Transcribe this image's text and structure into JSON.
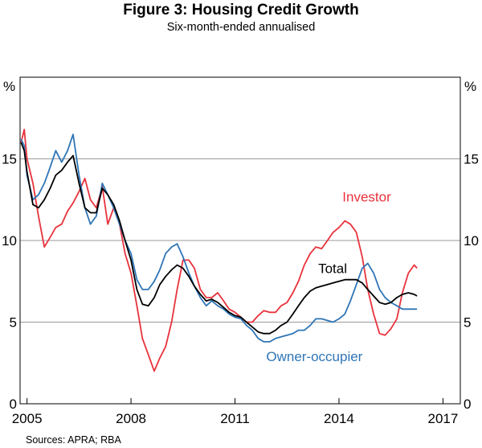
{
  "chart_data": {
    "type": "line",
    "title": "Figure 3: Housing Credit Growth",
    "subtitle": "Six-month-ended annualised",
    "unit_left": "%",
    "unit_right": "%",
    "ylim": [
      0,
      20
    ],
    "yticks": [
      0,
      5,
      10,
      15
    ],
    "xlim": [
      2004.8,
      2017.5
    ],
    "xticks": [
      {
        "value": 2005,
        "label": "2005"
      },
      {
        "value": 2008,
        "label": "2008"
      },
      {
        "value": 2011,
        "label": "2011"
      },
      {
        "value": 2014,
        "label": "2014"
      },
      {
        "value": 2017,
        "label": "2017"
      }
    ],
    "grid": true,
    "source": "Sources:   APRA; RBA",
    "series": [
      {
        "name": "Investor",
        "color": "#e8323c",
        "points": [
          [
            2004.83,
            16.0
          ],
          [
            2004.92,
            16.8
          ],
          [
            2005.0,
            15.0
          ],
          [
            2005.17,
            13.5
          ],
          [
            2005.33,
            11.5
          ],
          [
            2005.5,
            9.6
          ],
          [
            2005.67,
            10.2
          ],
          [
            2005.83,
            10.8
          ],
          [
            2006.0,
            11.0
          ],
          [
            2006.17,
            11.8
          ],
          [
            2006.33,
            12.3
          ],
          [
            2006.5,
            13.0
          ],
          [
            2006.67,
            13.8
          ],
          [
            2006.83,
            12.5
          ],
          [
            2007.0,
            12.0
          ],
          [
            2007.17,
            13.3
          ],
          [
            2007.33,
            11.0
          ],
          [
            2007.5,
            12.0
          ],
          [
            2007.67,
            11.0
          ],
          [
            2007.83,
            9.2
          ],
          [
            2008.0,
            8.0
          ],
          [
            2008.17,
            6.0
          ],
          [
            2008.33,
            4.0
          ],
          [
            2008.5,
            3.0
          ],
          [
            2008.67,
            2.0
          ],
          [
            2008.83,
            2.8
          ],
          [
            2009.0,
            3.5
          ],
          [
            2009.17,
            5.0
          ],
          [
            2009.33,
            7.0
          ],
          [
            2009.5,
            8.8
          ],
          [
            2009.67,
            8.8
          ],
          [
            2009.83,
            8.3
          ],
          [
            2010.0,
            7.0
          ],
          [
            2010.17,
            6.5
          ],
          [
            2010.33,
            6.5
          ],
          [
            2010.5,
            6.8
          ],
          [
            2010.67,
            6.3
          ],
          [
            2010.83,
            5.8
          ],
          [
            2011.0,
            5.6
          ],
          [
            2011.17,
            5.3
          ],
          [
            2011.33,
            5.0
          ],
          [
            2011.5,
            5.0
          ],
          [
            2011.67,
            5.4
          ],
          [
            2011.83,
            5.7
          ],
          [
            2012.0,
            5.6
          ],
          [
            2012.17,
            5.6
          ],
          [
            2012.33,
            6.0
          ],
          [
            2012.5,
            6.2
          ],
          [
            2012.67,
            6.8
          ],
          [
            2012.83,
            7.5
          ],
          [
            2013.0,
            8.5
          ],
          [
            2013.17,
            9.2
          ],
          [
            2013.33,
            9.6
          ],
          [
            2013.5,
            9.5
          ],
          [
            2013.67,
            10.0
          ],
          [
            2013.83,
            10.5
          ],
          [
            2014.0,
            10.8
          ],
          [
            2014.17,
            11.2
          ],
          [
            2014.33,
            11.0
          ],
          [
            2014.5,
            10.5
          ],
          [
            2014.67,
            9.0
          ],
          [
            2014.83,
            7.0
          ],
          [
            2015.0,
            5.5
          ],
          [
            2015.17,
            4.3
          ],
          [
            2015.33,
            4.2
          ],
          [
            2015.5,
            4.6
          ],
          [
            2015.67,
            5.2
          ],
          [
            2015.83,
            6.8
          ],
          [
            2016.0,
            8.0
          ],
          [
            2016.17,
            8.5
          ],
          [
            2016.25,
            8.3
          ]
        ],
        "label": "Investor"
      },
      {
        "name": "Owner-occupier",
        "color": "#2e75b6",
        "points": [
          [
            2004.83,
            16.2
          ],
          [
            2004.92,
            15.8
          ],
          [
            2005.0,
            14.0
          ],
          [
            2005.17,
            12.5
          ],
          [
            2005.33,
            12.8
          ],
          [
            2005.5,
            13.5
          ],
          [
            2005.67,
            14.5
          ],
          [
            2005.83,
            15.5
          ],
          [
            2006.0,
            14.8
          ],
          [
            2006.17,
            15.5
          ],
          [
            2006.33,
            16.5
          ],
          [
            2006.5,
            14.0
          ],
          [
            2006.67,
            12.0
          ],
          [
            2006.83,
            11.0
          ],
          [
            2007.0,
            11.5
          ],
          [
            2007.17,
            13.5
          ],
          [
            2007.33,
            12.8
          ],
          [
            2007.5,
            12.0
          ],
          [
            2007.67,
            11.0
          ],
          [
            2007.83,
            10.0
          ],
          [
            2008.0,
            9.2
          ],
          [
            2008.17,
            7.6
          ],
          [
            2008.33,
            7.0
          ],
          [
            2008.5,
            7.0
          ],
          [
            2008.67,
            7.5
          ],
          [
            2008.83,
            8.2
          ],
          [
            2009.0,
            9.2
          ],
          [
            2009.17,
            9.6
          ],
          [
            2009.33,
            9.8
          ],
          [
            2009.5,
            9.0
          ],
          [
            2009.67,
            8.0
          ],
          [
            2009.83,
            7.2
          ],
          [
            2010.0,
            6.5
          ],
          [
            2010.17,
            6.0
          ],
          [
            2010.33,
            6.3
          ],
          [
            2010.5,
            6.0
          ],
          [
            2010.67,
            5.8
          ],
          [
            2010.83,
            5.5
          ],
          [
            2011.0,
            5.3
          ],
          [
            2011.17,
            5.2
          ],
          [
            2011.33,
            4.8
          ],
          [
            2011.5,
            4.5
          ],
          [
            2011.67,
            4.0
          ],
          [
            2011.83,
            3.8
          ],
          [
            2012.0,
            3.8
          ],
          [
            2012.17,
            4.0
          ],
          [
            2012.33,
            4.1
          ],
          [
            2012.5,
            4.2
          ],
          [
            2012.67,
            4.3
          ],
          [
            2012.83,
            4.5
          ],
          [
            2013.0,
            4.5
          ],
          [
            2013.17,
            4.8
          ],
          [
            2013.33,
            5.2
          ],
          [
            2013.5,
            5.2
          ],
          [
            2013.67,
            5.1
          ],
          [
            2013.83,
            5.0
          ],
          [
            2014.0,
            5.2
          ],
          [
            2014.17,
            5.5
          ],
          [
            2014.33,
            6.3
          ],
          [
            2014.5,
            7.3
          ],
          [
            2014.67,
            8.3
          ],
          [
            2014.83,
            8.6
          ],
          [
            2015.0,
            8.0
          ],
          [
            2015.17,
            7.0
          ],
          [
            2015.33,
            6.5
          ],
          [
            2015.5,
            6.2
          ],
          [
            2015.67,
            6.0
          ],
          [
            2015.83,
            5.8
          ],
          [
            2016.0,
            5.8
          ],
          [
            2016.17,
            5.8
          ],
          [
            2016.25,
            5.8
          ]
        ],
        "label": "Owner-occupier"
      },
      {
        "name": "Total",
        "color": "#000000",
        "points": [
          [
            2004.83,
            16.0
          ],
          [
            2004.92,
            15.5
          ],
          [
            2005.0,
            14.2
          ],
          [
            2005.17,
            12.2
          ],
          [
            2005.33,
            12.0
          ],
          [
            2005.5,
            12.5
          ],
          [
            2005.67,
            13.2
          ],
          [
            2005.83,
            14.0
          ],
          [
            2006.0,
            14.3
          ],
          [
            2006.17,
            14.8
          ],
          [
            2006.33,
            15.2
          ],
          [
            2006.5,
            13.5
          ],
          [
            2006.67,
            12.0
          ],
          [
            2006.83,
            11.7
          ],
          [
            2007.0,
            11.7
          ],
          [
            2007.17,
            13.2
          ],
          [
            2007.33,
            12.8
          ],
          [
            2007.5,
            12.2
          ],
          [
            2007.67,
            11.2
          ],
          [
            2007.83,
            10.0
          ],
          [
            2008.0,
            8.8
          ],
          [
            2008.17,
            7.0
          ],
          [
            2008.33,
            6.1
          ],
          [
            2008.5,
            6.0
          ],
          [
            2008.67,
            6.5
          ],
          [
            2008.83,
            7.3
          ],
          [
            2009.0,
            7.8
          ],
          [
            2009.17,
            8.2
          ],
          [
            2009.33,
            8.5
          ],
          [
            2009.5,
            8.3
          ],
          [
            2009.67,
            7.8
          ],
          [
            2009.83,
            7.2
          ],
          [
            2010.0,
            6.7
          ],
          [
            2010.17,
            6.3
          ],
          [
            2010.33,
            6.4
          ],
          [
            2010.5,
            6.2
          ],
          [
            2010.67,
            5.9
          ],
          [
            2010.83,
            5.6
          ],
          [
            2011.0,
            5.4
          ],
          [
            2011.17,
            5.3
          ],
          [
            2011.33,
            5.0
          ],
          [
            2011.5,
            4.7
          ],
          [
            2011.67,
            4.4
          ],
          [
            2011.83,
            4.3
          ],
          [
            2012.0,
            4.3
          ],
          [
            2012.17,
            4.5
          ],
          [
            2012.33,
            4.8
          ],
          [
            2012.5,
            5.0
          ],
          [
            2012.67,
            5.5
          ],
          [
            2012.83,
            6.0
          ],
          [
            2013.0,
            6.5
          ],
          [
            2013.17,
            6.9
          ],
          [
            2013.33,
            7.1
          ],
          [
            2013.5,
            7.2
          ],
          [
            2013.67,
            7.3
          ],
          [
            2013.83,
            7.4
          ],
          [
            2014.0,
            7.5
          ],
          [
            2014.17,
            7.6
          ],
          [
            2014.33,
            7.6
          ],
          [
            2014.5,
            7.6
          ],
          [
            2014.67,
            7.4
          ],
          [
            2014.83,
            7.0
          ],
          [
            2015.0,
            6.6
          ],
          [
            2015.17,
            6.2
          ],
          [
            2015.33,
            6.1
          ],
          [
            2015.5,
            6.2
          ],
          [
            2015.67,
            6.5
          ],
          [
            2015.83,
            6.7
          ],
          [
            2016.0,
            6.8
          ],
          [
            2016.17,
            6.7
          ],
          [
            2016.25,
            6.6
          ]
        ],
        "label": "Total"
      }
    ]
  }
}
